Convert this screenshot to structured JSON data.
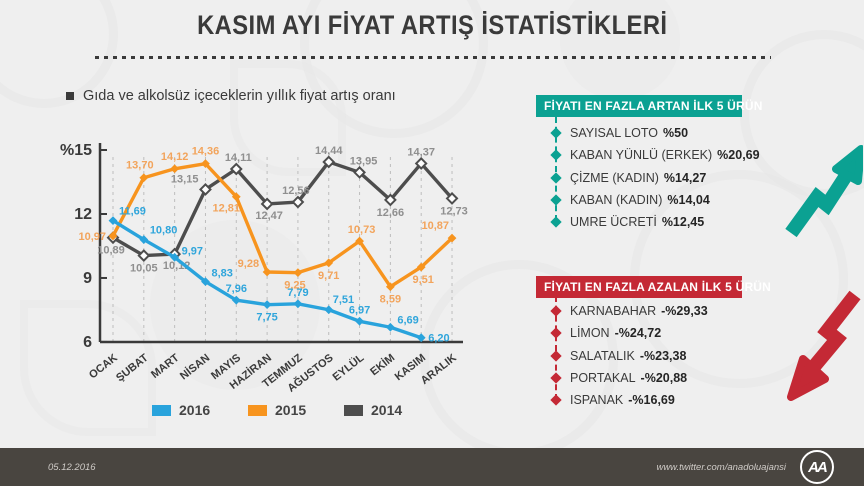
{
  "title": "KASIM AYI FİYAT ARTIŞ İSTATİSTİKLERİ",
  "subtitle": "Gıda ve alkolsüz içeceklerin yıllık fiyat artış oranı",
  "colors": {
    "background": "#EFEFEF",
    "title_text": "#3A3A3A",
    "blue_2016": "#29A3DC",
    "orange_2015": "#F7941E",
    "dark_2014": "#4D4D4D",
    "teal_accent": "#0BA192",
    "red_accent": "#C42935",
    "footer_bg": "#494540"
  },
  "chart_data": {
    "type": "line",
    "categories": [
      "OCAK",
      "ŞUBAT",
      "MART",
      "NİSAN",
      "MAYIS",
      "HAZİRAN",
      "TEMMUZ",
      "AĞUSTOS",
      "EYLÜL",
      "EKİM",
      "KASIM",
      "ARALIK"
    ],
    "unit": "%",
    "ylim": [
      6,
      15
    ],
    "yticks": [
      {
        "v": 6,
        "label": "6"
      },
      {
        "v": 9,
        "label": "9"
      },
      {
        "v": 12,
        "label": "12"
      },
      {
        "v": 15,
        "label": "%15"
      }
    ],
    "grid": "vertical-dashed",
    "legend_position": "bottom",
    "series": [
      {
        "name": "2016",
        "color": "#29A3DC",
        "label_color": "#2FA5DB",
        "values": [
          11.69,
          10.8,
          9.97,
          8.83,
          7.96,
          7.75,
          7.79,
          7.51,
          6.97,
          6.69,
          6.2,
          null
        ]
      },
      {
        "name": "2015",
        "color": "#F7941E",
        "label_color": "#F2A45C",
        "values": [
          10.97,
          13.7,
          14.12,
          14.36,
          12.81,
          9.28,
          9.25,
          9.71,
          10.73,
          8.59,
          9.51,
          10.87
        ]
      },
      {
        "name": "2014",
        "color": "#4D4D4D",
        "label_color": "#8F8F8F",
        "values": [
          10.89,
          10.05,
          10.12,
          13.15,
          14.11,
          12.47,
          12.56,
          14.44,
          13.95,
          12.66,
          14.37,
          12.73
        ]
      }
    ]
  },
  "panels": {
    "increase": {
      "header": "FİYATI EN FAZLA ARTAN İLK 5 ÜRÜN",
      "items": [
        {
          "name": "SAYISAL LOTO",
          "value": "%50"
        },
        {
          "name": "KABAN YÜNLÜ (ERKEK)",
          "value": "%20,69"
        },
        {
          "name": "ÇİZME (KADIN)",
          "value": "%14,27"
        },
        {
          "name": "KABAN (KADIN)",
          "value": "%14,04"
        },
        {
          "name": "UMRE ÜCRETİ",
          "value": "%12,45"
        }
      ]
    },
    "decrease": {
      "header": "FİYATI EN FAZLA AZALAN İLK 5 ÜRÜN",
      "items": [
        {
          "name": "KARNABAHAR",
          "value": "-%29,33"
        },
        {
          "name": "LİMON",
          "value": "-%24,72"
        },
        {
          "name": "SALATALIK",
          "value": "-%23,38"
        },
        {
          "name": "PORTAKAL",
          "value": "-%20,88"
        },
        {
          "name": "ISPANAK",
          "value": "-%16,69"
        }
      ]
    }
  },
  "footer": {
    "date": "05.12.2016",
    "twitter": "www.twitter.com/anadoluajansi",
    "logo": "AA"
  }
}
